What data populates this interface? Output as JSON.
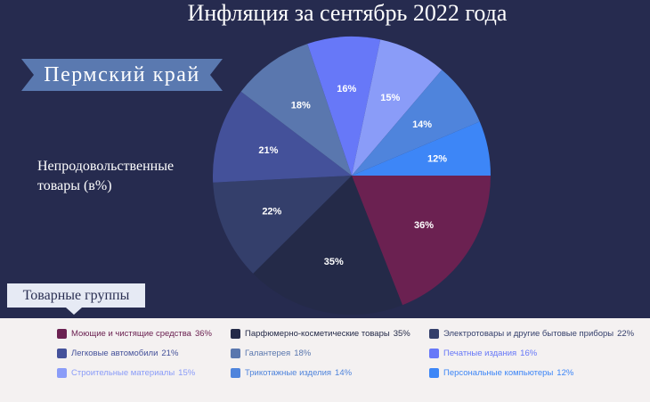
{
  "title": "Инфляция за сентябрь 2022 года",
  "region": "Пермский край",
  "subtitle": "Непродовольственные товары (в%)",
  "groups_label": "Товарные группы",
  "chart_data": {
    "type": "pie",
    "title": "Инфляция за сентябрь 2022 года",
    "unit": "%",
    "slices": [
      {
        "label": "Моющие и чистящие средства",
        "value": 36,
        "display": "36%",
        "color": "#6b2151",
        "legend_text_color": "#6b2151"
      },
      {
        "label": "Парфюмерно-косметические товары",
        "value": 35,
        "display": "35%",
        "color": "#242a48",
        "legend_text_color": "#242a48"
      },
      {
        "label": "Электротовары и другие бытовые приборы",
        "value": 22,
        "display": "22%",
        "color": "#343f6b",
        "legend_text_color": "#343f6b"
      },
      {
        "label": "Легковые автомобили",
        "value": 21,
        "display": "21%",
        "color": "#44519a",
        "legend_text_color": "#44519a"
      },
      {
        "label": "Галантерея",
        "value": 18,
        "display": "18%",
        "color": "#5a77ae",
        "legend_text_color": "#5a77ae"
      },
      {
        "label": "Печатные издания",
        "value": 16,
        "display": "16%",
        "color": "#6778f8",
        "legend_text_color": "#6778f8"
      },
      {
        "label": "Строительные материалы",
        "value": 15,
        "display": "15%",
        "color": "#8a9cf8",
        "legend_text_color": "#8a9cf8"
      },
      {
        "label": "Трикотажные изделия",
        "value": 14,
        "display": "14%",
        "color": "#4f84dc",
        "legend_text_color": "#4f84dc"
      },
      {
        "label": "Персональные компьютеры",
        "value": 12,
        "display": "12%",
        "color": "#3d86f7",
        "legend_text_color": "#3d86f7"
      }
    ],
    "legend_placement": "bottom",
    "start_angle_deg": 90,
    "direction": "clockwise"
  }
}
